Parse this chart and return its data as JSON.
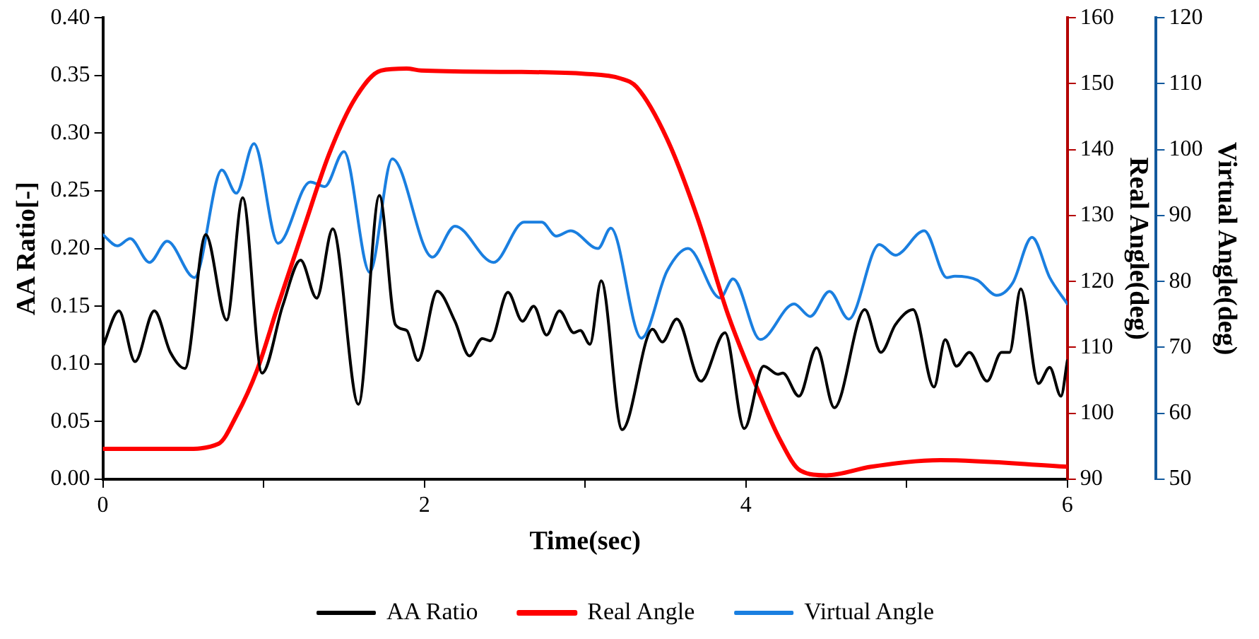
{
  "chart_data": {
    "type": "line",
    "xlabel": "Time(sec)",
    "ylabel": "AA Ratio[-]",
    "y2label": "Real Angle(deg)",
    "y3label": "Virtual Angle(deg)",
    "xlim": [
      0,
      6
    ],
    "xticks": [
      0,
      {
        "value": 1,
        "label": null
      },
      2,
      {
        "value": 3,
        "label": null
      },
      4,
      {
        "value": 5,
        "label": null
      },
      6
    ],
    "ylim": [
      0,
      0.4
    ],
    "yticks": [
      {
        "value": 0,
        "label": "0.00"
      },
      {
        "value": 0.05,
        "label": "0.05"
      },
      {
        "value": 0.1,
        "label": "0.10"
      },
      {
        "value": 0.15,
        "label": "0.15"
      },
      {
        "value": 0.2,
        "label": "0.20"
      },
      {
        "value": 0.25,
        "label": "0.25"
      },
      {
        "value": 0.3,
        "label": "0.30"
      },
      {
        "value": 0.35,
        "label": "0.35"
      },
      {
        "value": 0.4,
        "label": "0.40"
      }
    ],
    "y2lim": [
      90,
      160
    ],
    "y2ticks": [
      90,
      100,
      110,
      120,
      130,
      140,
      150,
      160
    ],
    "y3lim": [
      50,
      120
    ],
    "y3ticks": [
      50,
      60,
      70,
      80,
      90,
      100,
      110,
      120
    ],
    "grid": false,
    "legend": "bottom",
    "marker": "none",
    "line_style": "solid",
    "series": [
      {
        "name": "AA Ratio",
        "color": "#000000",
        "axis": "y",
        "x": [
          0,
          0.1,
          0.2,
          0.32,
          0.42,
          0.51,
          0.64,
          0.77,
          0.87,
          0.99,
          1.12,
          1.23,
          1.33,
          1.43,
          1.59,
          1.72,
          1.82,
          1.89,
          1.96,
          2.08,
          2.19,
          2.28,
          2.36,
          2.41,
          2.52,
          2.61,
          2.68,
          2.76,
          2.84,
          2.93,
          2.97,
          3.03,
          3.1,
          3.23,
          3.42,
          3.48,
          3.57,
          3.72,
          3.87,
          3.99,
          4.11,
          4.2,
          4.23,
          4.33,
          4.44,
          4.55,
          4.74,
          4.84,
          4.93,
          5.04,
          5.17,
          5.24,
          5.31,
          5.39,
          5.5,
          5.59,
          5.64,
          5.71,
          5.82,
          5.89,
          5.96,
          6
        ],
        "values": [
          0.115,
          0.146,
          0.102,
          0.146,
          0.11,
          0.096,
          0.212,
          0.138,
          0.244,
          0.092,
          0.151,
          0.19,
          0.157,
          0.217,
          0.065,
          0.246,
          0.134,
          0.129,
          0.103,
          0.163,
          0.137,
          0.107,
          0.122,
          0.12,
          0.162,
          0.137,
          0.15,
          0.125,
          0.146,
          0.127,
          0.129,
          0.117,
          0.172,
          0.043,
          0.13,
          0.119,
          0.139,
          0.085,
          0.127,
          0.044,
          0.098,
          0.091,
          0.092,
          0.072,
          0.114,
          0.062,
          0.147,
          0.11,
          0.134,
          0.147,
          0.08,
          0.121,
          0.098,
          0.11,
          0.085,
          0.11,
          0.11,
          0.165,
          0.083,
          0.097,
          0.072,
          0.103
        ]
      },
      {
        "name": "Real Angle",
        "color": "#ff0000",
        "axis": "y2",
        "x": [
          0,
          0.5,
          0.72,
          0.83,
          0.96,
          1.09,
          1.25,
          1.41,
          1.57,
          1.73,
          1.89,
          1.98,
          2.5,
          3.0,
          3.22,
          3.32,
          3.51,
          3.7,
          3.89,
          4.07,
          4.21,
          4.34,
          4.5,
          4.78,
          5.21,
          6
        ],
        "values": [
          94.6,
          94.6,
          95.4,
          99.6,
          106.6,
          116.4,
          128.1,
          139.5,
          147.8,
          152,
          152.3,
          152,
          151.8,
          151.5,
          150.8,
          149.5,
          141.6,
          129.6,
          114.9,
          103.8,
          96.1,
          91.3,
          90.6,
          91.9,
          92.9,
          91.9
        ]
      },
      {
        "name": "Virtual Angle",
        "color": "#1a7fe0",
        "axis": "y3",
        "x": [
          0,
          0.09,
          0.17,
          0.29,
          0.4,
          0.57,
          0.74,
          0.83,
          0.94,
          1.09,
          1.29,
          1.38,
          1.5,
          1.66,
          1.8,
          2.05,
          2.19,
          2.43,
          2.62,
          2.73,
          2.82,
          2.91,
          3.08,
          3.16,
          3.35,
          3.51,
          3.64,
          3.84,
          3.92,
          4.09,
          4.3,
          4.4,
          4.52,
          4.64,
          4.83,
          4.93,
          5.11,
          5.25,
          5.3,
          5.44,
          5.56,
          5.66,
          5.78,
          5.89,
          6
        ],
        "values": [
          87.1,
          85.4,
          86.5,
          82.9,
          86.1,
          80.6,
          96.9,
          93.4,
          100.9,
          85.8,
          95.1,
          94.4,
          99.7,
          81.4,
          98.6,
          83.7,
          88.4,
          82.9,
          89,
          89,
          86.9,
          87.7,
          85,
          88.1,
          71.4,
          81.6,
          85,
          77.5,
          80.4,
          71.2,
          76.6,
          74.7,
          78.5,
          74.3,
          85.6,
          84,
          87.7,
          80.6,
          80.8,
          80.2,
          77.9,
          79.8,
          86.7,
          80.6,
          76.6
        ]
      }
    ]
  }
}
